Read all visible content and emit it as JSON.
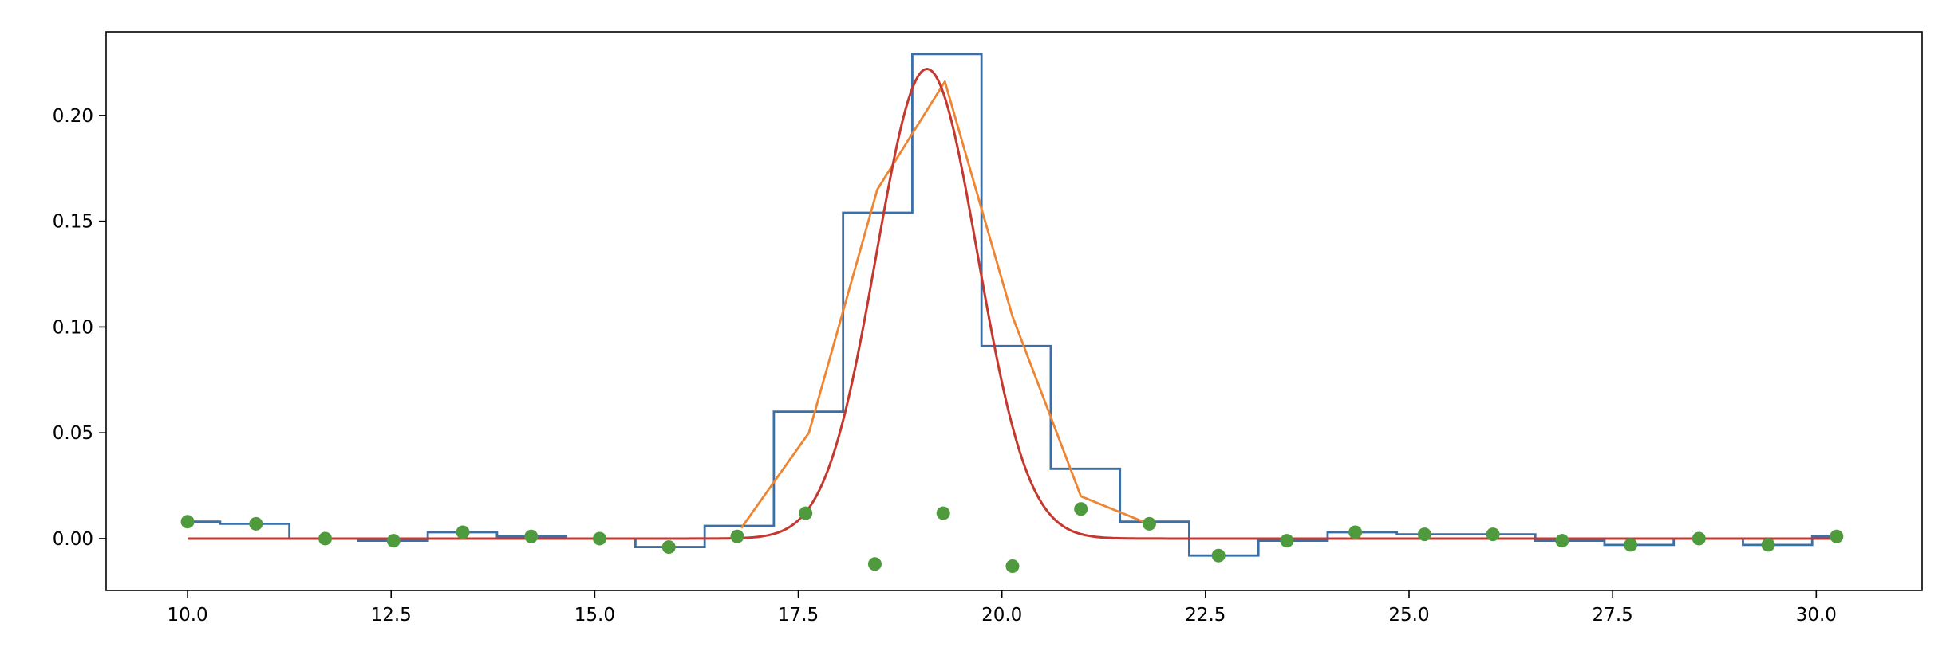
{
  "chart_data": {
    "type": "line",
    "title": "",
    "xlabel": "",
    "ylabel": "",
    "xlim": [
      9.0,
      31.3
    ],
    "ylim": [
      -0.0245,
      0.2395
    ],
    "grid": false,
    "x_ticks": [
      10.0,
      12.5,
      15.0,
      17.5,
      20.0,
      22.5,
      25.0,
      27.5,
      30.0
    ],
    "x_tick_labels": [
      "10.0",
      "12.5",
      "15.0",
      "17.5",
      "20.0",
      "22.5",
      "25.0",
      "27.5",
      "30.0"
    ],
    "y_ticks": [
      0.0,
      0.05,
      0.1,
      0.15,
      0.2
    ],
    "y_tick_labels": [
      "0.00",
      "0.05",
      "0.10",
      "0.15",
      "0.20"
    ],
    "series": [
      {
        "kind": "step",
        "color": "#3a6fa8",
        "bin_edges": [
          10.0,
          10.4,
          11.25,
          12.1,
          12.95,
          13.8,
          14.65,
          15.5,
          16.35,
          17.2,
          18.05,
          18.9,
          19.75,
          20.6,
          21.45,
          22.3,
          23.15,
          24.0,
          24.85,
          25.7,
          26.55,
          27.4,
          28.25,
          29.1,
          29.95,
          30.25
        ],
        "values": [
          0.008,
          0.007,
          0.0,
          -0.001,
          0.003,
          0.001,
          0.0,
          -0.004,
          0.006,
          0.06,
          0.154,
          0.229,
          0.091,
          0.033,
          0.008,
          -0.008,
          -0.001,
          0.003,
          0.002,
          0.002,
          -0.001,
          -0.003,
          0.0,
          -0.003,
          0.001
        ]
      },
      {
        "kind": "line",
        "color": "#ee8533",
        "x": [
          16.8,
          17.63,
          18.47,
          19.3,
          20.13,
          20.97,
          21.8
        ],
        "y": [
          0.005,
          0.05,
          0.165,
          0.216,
          0.105,
          0.02,
          0.007
        ]
      },
      {
        "kind": "curve",
        "color": "#c3392f",
        "function": "gaussian",
        "amplitude": 0.222,
        "mean": 19.08,
        "sigma": 0.62,
        "x_range": [
          10.0,
          30.25
        ]
      },
      {
        "kind": "scatter",
        "color": "#4e9a3d",
        "x": [
          10.0,
          10.84,
          11.69,
          12.53,
          13.38,
          14.22,
          15.06,
          15.91,
          16.75,
          17.59,
          18.44,
          19.28,
          20.13,
          20.97,
          21.81,
          22.66,
          23.5,
          24.34,
          25.19,
          26.03,
          26.88,
          27.72,
          28.56,
          29.41,
          30.25
        ],
        "y": [
          0.008,
          0.007,
          0.0,
          -0.001,
          0.003,
          0.001,
          0.0,
          -0.004,
          0.001,
          0.012,
          -0.012,
          0.012,
          -0.013,
          0.014,
          0.007,
          -0.008,
          -0.001,
          0.003,
          0.002,
          0.002,
          -0.001,
          -0.003,
          0.0,
          -0.003,
          0.001
        ]
      }
    ]
  }
}
